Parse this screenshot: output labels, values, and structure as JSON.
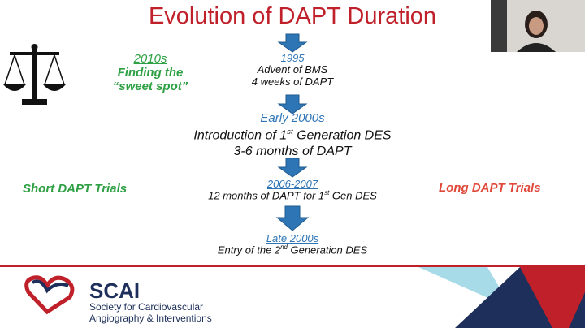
{
  "title": "Evolution of DAPT Duration",
  "left_note": {
    "year": "2010s",
    "lines": [
      "Finding the",
      "“sweet spot”"
    ]
  },
  "short_label": "Short DAPT Trials",
  "long_label": "Long DAPT Trials",
  "timeline": [
    {
      "date": "1995",
      "lines": [
        {
          "text": "Advent of BMS"
        },
        {
          "text": "4 weeks of DAPT"
        }
      ]
    },
    {
      "date": "Early 2000s",
      "lines": [
        {
          "text": "Introduction of 1",
          "sup": "st",
          "rest": " Generation DES"
        },
        {
          "text": "3-6 months of DAPT"
        }
      ]
    },
    {
      "date": "2006-2007",
      "lines": [
        {
          "text": "12 months of DAPT for 1",
          "sup": "st",
          "rest": " Gen DES"
        }
      ]
    },
    {
      "date": "Late 2000s",
      "lines": [
        {
          "text": "Entry of the 2",
          "sup": "nd",
          "rest": " Generation DES"
        }
      ]
    }
  ],
  "logo": {
    "name": "SCAI",
    "subtitle": [
      "Society for Cardiovascular",
      "Angiography & Interventions"
    ]
  }
}
